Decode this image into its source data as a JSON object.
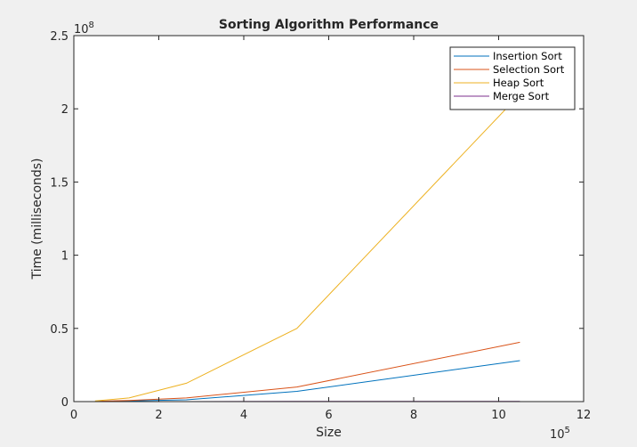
{
  "chart_data": {
    "type": "line",
    "title": "Sorting Algorithm Performance",
    "xlabel": "Size",
    "ylabel": "Time (milliseconds)",
    "x_exponent_label": "10",
    "x_exponent_power": "5",
    "y_exponent_label": "10",
    "y_exponent_power": "8",
    "xlim": [
      0,
      12
    ],
    "ylim": [
      0,
      2.5
    ],
    "x_ticks": [
      0,
      2,
      4,
      6,
      8,
      10,
      12
    ],
    "x_tick_labels": [
      "0",
      "2",
      "4",
      "6",
      "8",
      "10",
      "12"
    ],
    "y_ticks": [
      0,
      0.5,
      1,
      1.5,
      2,
      2.5
    ],
    "y_tick_labels": [
      "0",
      "0.5",
      "1",
      "1.5",
      "2",
      "2.5"
    ],
    "x_scale_note": "x values in units of 10^5",
    "y_scale_note": "y values in units of 10^8",
    "x": [
      0.5,
      1.3,
      2.65,
      5.25,
      10.5
    ],
    "series": [
      {
        "name": "Insertion Sort",
        "color": "#0072bd",
        "values": [
          0.001,
          0.004,
          0.012,
          0.07,
          0.28
        ]
      },
      {
        "name": "Selection Sort",
        "color": "#d95319",
        "values": [
          0.002,
          0.008,
          0.025,
          0.1,
          0.405
        ]
      },
      {
        "name": "Heap Sort",
        "color": "#edb120",
        "values": [
          0.005,
          0.025,
          0.125,
          0.5,
          2.1
        ]
      },
      {
        "name": "Merge Sort",
        "color": "#7e2f8e",
        "values": [
          0.0,
          0.0,
          0.0,
          0.001,
          0.002
        ]
      }
    ],
    "legend_position": "top-right",
    "grid": false
  }
}
